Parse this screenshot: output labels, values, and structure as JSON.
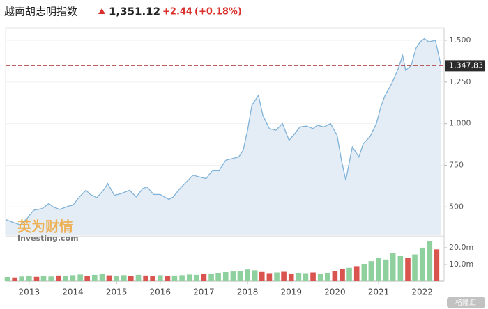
{
  "header": {
    "title": "越南胡志明指数",
    "price": "1,351.12",
    "change": "+2.44",
    "change_pct": "(+0.18%)"
  },
  "watermarks": [
    "英为财情",
    "Investing.com",
    "格隆汇"
  ],
  "chart_data": [
    {
      "type": "area",
      "color": "#7fb2d8",
      "fill": "#e4edf6",
      "grid": true,
      "x": [
        2012.46,
        2012.6,
        2012.8,
        2012.95,
        2013.1,
        2013.3,
        2013.45,
        2013.55,
        2013.7,
        2013.9,
        2014.0,
        2014.15,
        2014.3,
        2014.4,
        2014.55,
        2014.7,
        2014.8,
        2014.95,
        2015.1,
        2015.3,
        2015.45,
        2015.6,
        2015.7,
        2015.85,
        2016.0,
        2016.1,
        2016.2,
        2016.3,
        2016.45,
        2016.6,
        2016.75,
        2016.9,
        2017.05,
        2017.2,
        2017.35,
        2017.5,
        2017.65,
        2017.8,
        2017.9,
        2018.0,
        2018.1,
        2018.2,
        2018.25,
        2018.35,
        2018.5,
        2018.65,
        2018.8,
        2018.95,
        2019.05,
        2019.2,
        2019.35,
        2019.5,
        2019.6,
        2019.75,
        2019.9,
        2020.05,
        2020.15,
        2020.25,
        2020.4,
        2020.55,
        2020.65,
        2020.8,
        2020.95,
        2021.05,
        2021.15,
        2021.3,
        2021.45,
        2021.55,
        2021.62,
        2021.75,
        2021.85,
        2021.95,
        2022.05,
        2022.15,
        2022.3,
        2022.43
      ],
      "values": [
        425,
        410,
        392,
        430,
        480,
        490,
        520,
        500,
        485,
        505,
        510,
        560,
        600,
        575,
        555,
        600,
        640,
        570,
        580,
        600,
        560,
        610,
        620,
        575,
        575,
        560,
        545,
        560,
        610,
        650,
        690,
        680,
        670,
        720,
        720,
        780,
        790,
        800,
        840,
        960,
        1110,
        1150,
        1170,
        1050,
        970,
        960,
        1000,
        900,
        930,
        980,
        985,
        970,
        990,
        980,
        1000,
        930,
        780,
        660,
        860,
        800,
        880,
        920,
        1000,
        1100,
        1170,
        1240,
        1330,
        1410,
        1320,
        1350,
        1450,
        1490,
        1510,
        1490,
        1500,
        1348
      ],
      "xlim": [
        2012.46,
        2022.5
      ],
      "ylim": [
        330,
        1575
      ],
      "yticks": [
        {
          "value": 500,
          "label": "500"
        },
        {
          "value": 750,
          "label": "750"
        },
        {
          "value": 1000,
          "label": "1,000"
        },
        {
          "value": 1250,
          "label": "1,250"
        },
        {
          "value": 1500,
          "label": "1,500"
        }
      ],
      "reference_line": {
        "value": 1347.83,
        "label": "1,347.83",
        "color": "#b34a4a"
      }
    },
    {
      "type": "bar",
      "xlim": [
        2012.46,
        2022.5
      ],
      "ylim": [
        0,
        25.8
      ],
      "x": [
        2012.5,
        2012.67,
        2012.83,
        2013.0,
        2013.17,
        2013.33,
        2013.5,
        2013.67,
        2013.83,
        2014.0,
        2014.17,
        2014.33,
        2014.5,
        2014.67,
        2014.83,
        2015.0,
        2015.17,
        2015.33,
        2015.5,
        2015.67,
        2015.83,
        2016.0,
        2016.17,
        2016.33,
        2016.5,
        2016.67,
        2016.83,
        2017.0,
        2017.17,
        2017.33,
        2017.5,
        2017.67,
        2017.83,
        2018.0,
        2018.17,
        2018.33,
        2018.5,
        2018.67,
        2018.83,
        2019.0,
        2019.17,
        2019.33,
        2019.5,
        2019.67,
        2019.83,
        2020.0,
        2020.17,
        2020.33,
        2020.5,
        2020.67,
        2020.83,
        2021.0,
        2021.17,
        2021.33,
        2021.5,
        2021.67,
        2021.83,
        2022.0,
        2022.17,
        2022.33
      ],
      "values": [
        2.5,
        2.2,
        2.8,
        3,
        2.6,
        3.2,
        2.8,
        3.4,
        3,
        3.6,
        4,
        3.2,
        3.8,
        4.2,
        3.5,
        3,
        3.6,
        3.2,
        3.8,
        3.4,
        3,
        3.6,
        3.2,
        3.4,
        3.6,
        4,
        3.8,
        4.2,
        4.6,
        5,
        5.4,
        5.8,
        6.2,
        7,
        6.5,
        5.5,
        4.8,
        5.2,
        5.6,
        4.6,
        5,
        4.8,
        5.2,
        4.6,
        5,
        6,
        7.5,
        8,
        9,
        10,
        12,
        14,
        13,
        17,
        15,
        14,
        16,
        20,
        24,
        19
      ],
      "colors": [
        "#8fd19e",
        "#d9534f",
        "#8fd19e",
        "#8fd19e",
        "#d9534f",
        "#8fd19e",
        "#8fd19e",
        "#d9534f",
        "#8fd19e",
        "#8fd19e",
        "#8fd19e",
        "#d9534f",
        "#8fd19e",
        "#8fd19e",
        "#d9534f",
        "#8fd19e",
        "#8fd19e",
        "#d9534f",
        "#8fd19e",
        "#d9534f",
        "#d9534f",
        "#8fd19e",
        "#d9534f",
        "#8fd19e",
        "#8fd19e",
        "#8fd19e",
        "#8fd19e",
        "#d9534f",
        "#8fd19e",
        "#8fd19e",
        "#8fd19e",
        "#8fd19e",
        "#8fd19e",
        "#8fd19e",
        "#8fd19e",
        "#d9534f",
        "#d9534f",
        "#8fd19e",
        "#d9534f",
        "#d9534f",
        "#8fd19e",
        "#8fd19e",
        "#d9534f",
        "#8fd19e",
        "#8fd19e",
        "#d9534f",
        "#d9534f",
        "#8fd19e",
        "#d9534f",
        "#8fd19e",
        "#8fd19e",
        "#8fd19e",
        "#8fd19e",
        "#8fd19e",
        "#8fd19e",
        "#d9534f",
        "#8fd19e",
        "#8fd19e",
        "#8fd19e",
        "#d9534f"
      ],
      "yticks": [
        {
          "value": 10,
          "label": "10.0m"
        },
        {
          "value": 20,
          "label": "20.0m"
        }
      ],
      "xticks": [
        2013,
        2014,
        2015,
        2016,
        2017,
        2018,
        2019,
        2020,
        2021,
        2022
      ]
    }
  ]
}
